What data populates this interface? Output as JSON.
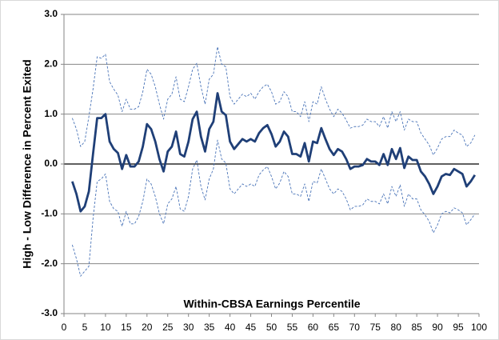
{
  "chart_data": {
    "type": "line",
    "xlabel": "Within-CBSA Earnings Percentile",
    "ylabel": "High - Low Difference in Percent Exited",
    "x": [
      2,
      3,
      4,
      5,
      6,
      7,
      8,
      9,
      10,
      11,
      12,
      13,
      14,
      15,
      16,
      17,
      18,
      19,
      20,
      21,
      22,
      23,
      24,
      25,
      26,
      27,
      28,
      29,
      30,
      31,
      32,
      33,
      34,
      35,
      36,
      37,
      38,
      39,
      40,
      41,
      42,
      43,
      44,
      45,
      46,
      47,
      48,
      49,
      50,
      51,
      52,
      53,
      54,
      55,
      56,
      57,
      58,
      59,
      60,
      61,
      62,
      63,
      64,
      65,
      66,
      67,
      68,
      69,
      70,
      71,
      72,
      73,
      74,
      75,
      76,
      77,
      78,
      79,
      80,
      81,
      82,
      83,
      84,
      85,
      86,
      87,
      88,
      89,
      90,
      91,
      92,
      93,
      94,
      95,
      96,
      97,
      98,
      99
    ],
    "series": [
      {
        "color": "#1f3f77",
        "dashed": false,
        "values": [
          -0.35,
          -0.6,
          -0.95,
          -0.85,
          -0.55,
          0.2,
          0.92,
          0.92,
          1.0,
          0.45,
          0.3,
          0.22,
          -0.1,
          0.18,
          -0.05,
          -0.05,
          0.05,
          0.35,
          0.8,
          0.7,
          0.45,
          0.1,
          -0.15,
          0.25,
          0.35,
          0.65,
          0.2,
          0.15,
          0.45,
          0.9,
          1.05,
          0.55,
          0.25,
          0.7,
          0.85,
          1.42,
          1.05,
          0.98,
          0.45,
          0.3,
          0.4,
          0.5,
          0.45,
          0.5,
          0.45,
          0.62,
          0.72,
          0.78,
          0.6,
          0.35,
          0.45,
          0.65,
          0.55,
          0.2,
          0.2,
          0.15,
          0.42,
          0.05,
          0.45,
          0.42,
          0.72,
          0.5,
          0.3,
          0.18,
          0.3,
          0.25,
          0.1,
          -0.1,
          -0.05,
          -0.05,
          -0.02,
          0.1,
          0.05,
          0.05,
          -0.02,
          0.2,
          -0.02,
          0.3,
          0.1,
          0.32,
          -0.08,
          0.15,
          0.08,
          0.08,
          -0.15,
          -0.25,
          -0.4,
          -0.6,
          -0.45,
          -0.25,
          -0.2,
          -0.22,
          -0.1,
          -0.15,
          -0.2,
          -0.45,
          -0.35,
          -0.22
        ]
      },
      {
        "color": "#4a74b8",
        "dashed": true,
        "values": [
          0.92,
          0.7,
          0.35,
          0.45,
          0.95,
          1.5,
          2.15,
          2.12,
          2.2,
          1.65,
          1.5,
          1.38,
          1.05,
          1.3,
          1.1,
          1.1,
          1.15,
          1.45,
          1.9,
          1.8,
          1.55,
          1.2,
          0.9,
          1.3,
          1.4,
          1.75,
          1.3,
          1.25,
          1.55,
          1.9,
          2.02,
          1.55,
          1.2,
          1.7,
          1.8,
          2.35,
          2.0,
          1.95,
          1.35,
          1.2,
          1.3,
          1.4,
          1.35,
          1.42,
          1.3,
          1.45,
          1.55,
          1.6,
          1.45,
          1.2,
          1.25,
          1.45,
          1.35,
          1.05,
          1.05,
          0.95,
          1.25,
          0.85,
          1.25,
          1.2,
          1.55,
          1.3,
          1.1,
          0.95,
          1.1,
          1.02,
          0.88,
          0.72,
          0.75,
          0.75,
          0.78,
          0.9,
          0.85,
          0.85,
          0.75,
          0.95,
          0.72,
          1.05,
          0.85,
          1.05,
          0.68,
          0.9,
          0.85,
          0.85,
          0.62,
          0.5,
          0.38,
          0.18,
          0.32,
          0.5,
          0.55,
          0.55,
          0.68,
          0.62,
          0.58,
          0.35,
          0.42,
          0.58
        ]
      },
      {
        "color": "#4a74b8",
        "dashed": true,
        "values": [
          -1.62,
          -1.9,
          -2.25,
          -2.15,
          -2.05,
          -1.1,
          -0.35,
          -0.3,
          -0.2,
          -0.75,
          -0.9,
          -0.95,
          -1.25,
          -0.95,
          -1.2,
          -1.2,
          -1.05,
          -0.75,
          -0.3,
          -0.4,
          -0.65,
          -1.0,
          -1.2,
          -0.8,
          -0.7,
          -0.45,
          -0.9,
          -0.95,
          -0.65,
          -0.1,
          0.08,
          -0.45,
          -0.72,
          -0.3,
          -0.1,
          0.48,
          0.1,
          0.02,
          -0.5,
          -0.6,
          -0.5,
          -0.4,
          -0.45,
          -0.4,
          -0.45,
          -0.22,
          -0.12,
          -0.05,
          -0.25,
          -0.5,
          -0.38,
          -0.15,
          -0.25,
          -0.6,
          -0.6,
          -0.65,
          -0.4,
          -0.75,
          -0.35,
          -0.38,
          -0.1,
          -0.3,
          -0.5,
          -0.6,
          -0.5,
          -0.55,
          -0.7,
          -0.92,
          -0.85,
          -0.85,
          -0.82,
          -0.7,
          -0.75,
          -0.75,
          -0.8,
          -0.6,
          -0.8,
          -0.45,
          -0.65,
          -0.42,
          -0.85,
          -0.6,
          -0.7,
          -0.7,
          -0.92,
          -1.02,
          -1.15,
          -1.38,
          -1.22,
          -1.0,
          -0.95,
          -0.98,
          -0.88,
          -0.92,
          -0.98,
          -1.22,
          -1.12,
          -1.0
        ]
      }
    ],
    "xlim": [
      0,
      100
    ],
    "xticks": [
      0,
      5,
      10,
      15,
      20,
      25,
      30,
      35,
      40,
      45,
      50,
      55,
      60,
      65,
      70,
      75,
      80,
      85,
      90,
      95,
      100
    ],
    "ylim": [
      -3,
      3
    ],
    "yticks": [
      {
        "value": -3,
        "label": "-3.0"
      },
      {
        "value": -2,
        "label": "-2.0"
      },
      {
        "value": -1,
        "label": "-1.0"
      },
      {
        "value": 0,
        "label": "0.0"
      },
      {
        "value": 1,
        "label": "1.0"
      },
      {
        "value": 2,
        "label": "2.0"
      },
      {
        "value": 3,
        "label": "3.0"
      }
    ],
    "grid": true
  }
}
